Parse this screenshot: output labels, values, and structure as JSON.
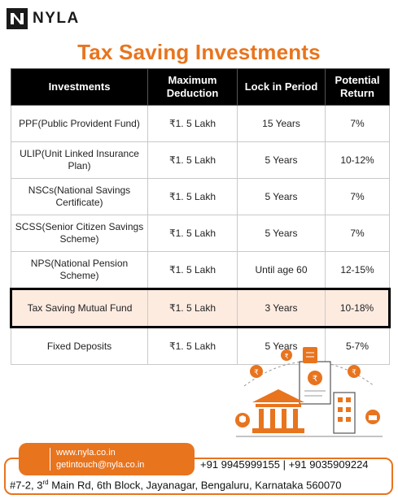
{
  "brand": {
    "name": "NYLA",
    "accent": "#e8741e"
  },
  "title": "Tax Saving Investments",
  "table": {
    "headers": [
      "Investments",
      "Maximum Deduction",
      "Lock in Period",
      "Potential Return"
    ],
    "rows": [
      {
        "investment": "PPF(Public Provident Fund)",
        "deduction": "₹1. 5 Lakh",
        "lock": "15 Years",
        "return": "7%"
      },
      {
        "investment": "ULIP(Unit Linked Insurance Plan)",
        "deduction": "₹1. 5 Lakh",
        "lock": "5 Years",
        "return": "10-12%"
      },
      {
        "investment": "NSCs(National Savings Certificate)",
        "deduction": "₹1. 5 Lakh",
        "lock": "5 Years",
        "return": "7%"
      },
      {
        "investment": "SCSS(Senior Citizen Savings Scheme)",
        "deduction": "₹1. 5 Lakh",
        "lock": "5 Years",
        "return": "7%"
      },
      {
        "investment": "NPS(National Pension Scheme)",
        "deduction": "₹1. 5 Lakh",
        "lock": "Until age 60",
        "return": "12-15%"
      },
      {
        "investment": "Tax Saving Mutual Fund",
        "deduction": "₹1. 5 Lakh",
        "lock": "3 Years",
        "return": "10-18%",
        "highlight": true
      },
      {
        "investment": "Fixed Deposits",
        "deduction": "₹1. 5 Lakh",
        "lock": "5 Years",
        "return": "5-7%"
      }
    ]
  },
  "footer": {
    "website": "www.nyla.co.in",
    "email": "getintouch@nyla.co.in",
    "phones": "+91 9945999155  | +91 9035909224",
    "address_prefix": "#7-2, 3",
    "address_sup": "rd",
    "address_rest": " Main Rd, 6th Block, Jayanagar, Bengaluru, Karnataka 560070"
  }
}
